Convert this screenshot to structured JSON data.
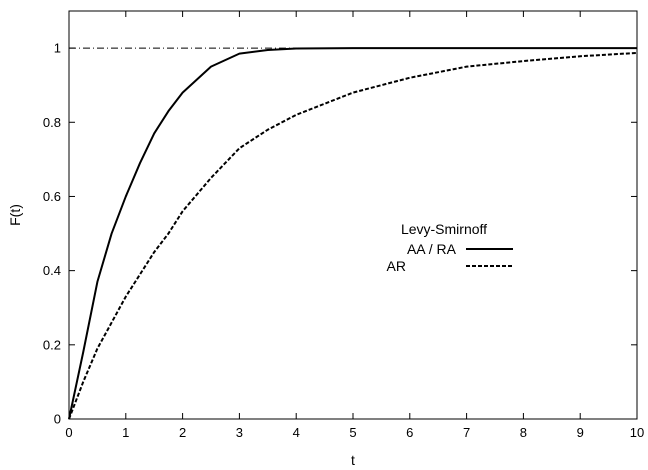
{
  "chart_data": {
    "type": "line",
    "xlabel": "t",
    "ylabel": "F(t)",
    "xlim": [
      0,
      10
    ],
    "ylim": [
      0,
      1.1
    ],
    "grid": false,
    "x_ticks": [
      "0",
      "1",
      "2",
      "3",
      "4",
      "5",
      "6",
      "7",
      "8",
      "9",
      "10"
    ],
    "y_ticks": [
      "0",
      "0.2",
      "0.4",
      "0.6",
      "0.8",
      "1"
    ],
    "legend": {
      "title": "Levy-Smirnoff",
      "position": "center-right"
    },
    "reference_line": {
      "y": 1,
      "style": "dash-dot"
    },
    "x": [
      0,
      0.25,
      0.5,
      0.75,
      1,
      1.25,
      1.5,
      1.75,
      2,
      2.5,
      3,
      3.5,
      4,
      5,
      6,
      7,
      8,
      9,
      10
    ],
    "series": [
      {
        "name": "AA / RA",
        "style": "solid",
        "values": [
          0,
          0.18,
          0.37,
          0.5,
          0.6,
          0.69,
          0.77,
          0.83,
          0.88,
          0.95,
          0.985,
          0.995,
          0.999,
          1,
          1,
          1,
          1,
          1,
          1
        ]
      },
      {
        "name": "AR",
        "style": "dashed",
        "values": [
          0,
          0.1,
          0.19,
          0.26,
          0.33,
          0.39,
          0.45,
          0.5,
          0.56,
          0.65,
          0.73,
          0.78,
          0.82,
          0.88,
          0.92,
          0.95,
          0.965,
          0.978,
          0.987
        ]
      }
    ]
  }
}
